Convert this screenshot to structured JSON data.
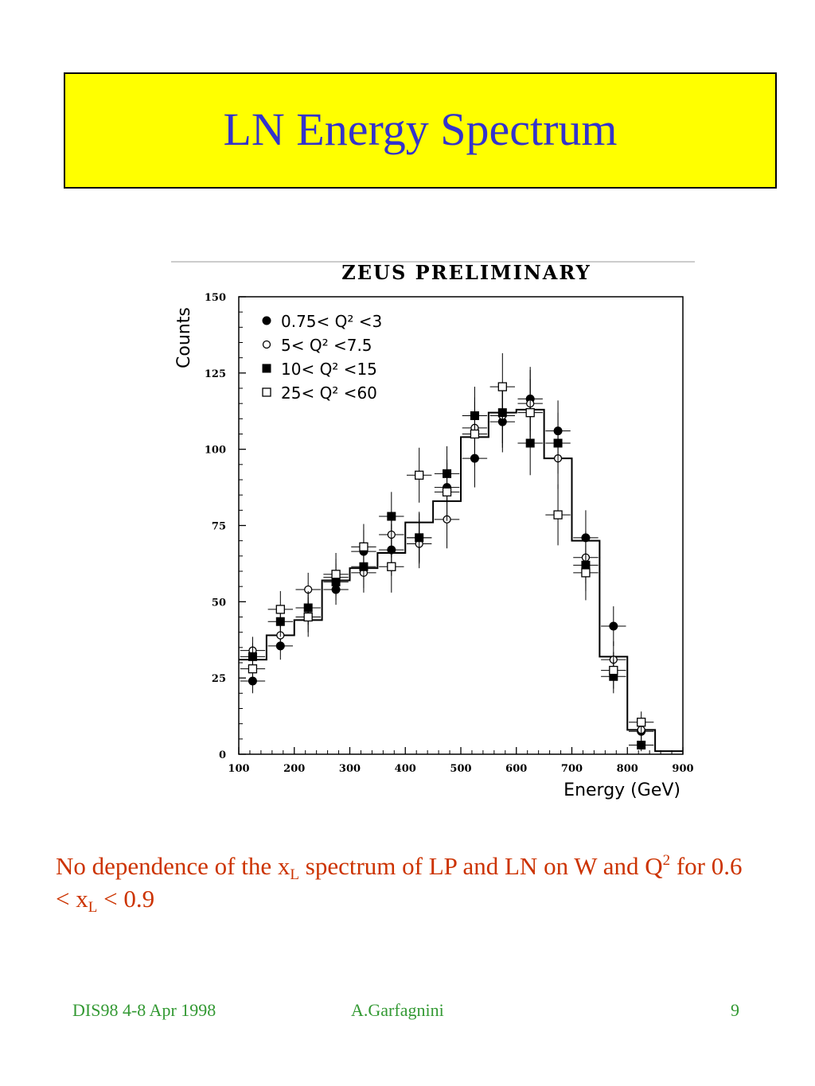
{
  "slide": {
    "title": "LN Energy Spectrum",
    "caption": {
      "part1": "No dependence of the x",
      "sub1": "L",
      "part2": " spectrum of LP and LN on W and Q",
      "sup1": "2",
      "part3": " for 0.6 < x",
      "sub2": "L",
      "part4": " < 0.9"
    },
    "footer": {
      "left": "DIS98 4-8 Apr 1998",
      "center": "A.Garfagnini",
      "right": "9"
    },
    "colors": {
      "title_bg": "#ffff00",
      "title_text": "#3333cc",
      "caption_text": "#cc3300",
      "footer_text": "#339933"
    }
  },
  "chart_data": {
    "type": "scatter",
    "title": "ZEUS PRELIMINARY",
    "xlabel": "Energy (GeV)",
    "ylabel": "Counts",
    "xlim": [
      100,
      900
    ],
    "ylim": [
      0,
      150
    ],
    "xticks": [
      100,
      200,
      300,
      400,
      500,
      600,
      700,
      800,
      900
    ],
    "yticks": [
      0,
      25,
      50,
      75,
      100,
      125,
      150
    ],
    "legend_position": "top-left",
    "bin_centers": [
      125,
      175,
      225,
      275,
      325,
      375,
      425,
      475,
      525,
      575,
      625,
      675,
      725,
      775,
      825,
      875
    ],
    "histogram": {
      "bin_edges": [
        100,
        150,
        200,
        250,
        300,
        350,
        400,
        450,
        500,
        550,
        600,
        650,
        700,
        750,
        800,
        850,
        900
      ],
      "values": [
        31,
        39,
        44,
        57,
        61,
        66,
        76,
        83,
        104,
        112,
        113,
        97,
        70,
        32,
        8,
        1
      ]
    },
    "series": [
      {
        "name": "0.75< Q² <3",
        "marker": "filled-circle",
        "values": [
          24,
          35.5,
          45,
          54,
          66.5,
          67,
          71,
          87.5,
          97,
          109,
          116.5,
          106,
          71,
          42,
          7.5,
          null
        ],
        "errors": [
          4,
          4.5,
          5,
          5,
          7,
          8.5,
          8,
          9,
          9.5,
          10,
          10.5,
          10,
          9,
          6.5,
          3,
          null
        ]
      },
      {
        "name": "5< Q² <7.5",
        "marker": "open-circle",
        "values": [
          34,
          39,
          54,
          58,
          59.5,
          72,
          69,
          77,
          107,
          111,
          115,
          97,
          64.5,
          31,
          8,
          null
        ],
        "errors": [
          4.5,
          5,
          5.5,
          6,
          6.5,
          7.5,
          8,
          9.5,
          10,
          10.5,
          11,
          10,
          8.5,
          6,
          3,
          null
        ]
      },
      {
        "name": "10< Q² <15",
        "marker": "filled-square",
        "values": [
          32,
          43.5,
          48,
          56.5,
          61.5,
          78,
          71,
          92,
          111,
          112,
          102,
          102,
          62,
          25.5,
          3,
          null
        ],
        "errors": [
          4.5,
          5,
          5.5,
          6,
          7,
          8,
          8.5,
          9,
          9.5,
          10,
          10.5,
          10,
          8.5,
          5.5,
          2,
          null
        ]
      },
      {
        "name": "25< Q² <60",
        "marker": "open-square",
        "values": [
          28,
          47.5,
          45,
          59,
          68,
          61.5,
          91.5,
          86,
          105,
          120.5,
          112,
          78.5,
          59.5,
          27.5,
          10.5,
          null
        ],
        "errors": [
          5,
          6,
          6.5,
          7,
          7.5,
          8.5,
          9,
          9.5,
          10.5,
          11,
          11,
          10,
          9,
          6,
          3.5,
          null
        ]
      }
    ]
  }
}
